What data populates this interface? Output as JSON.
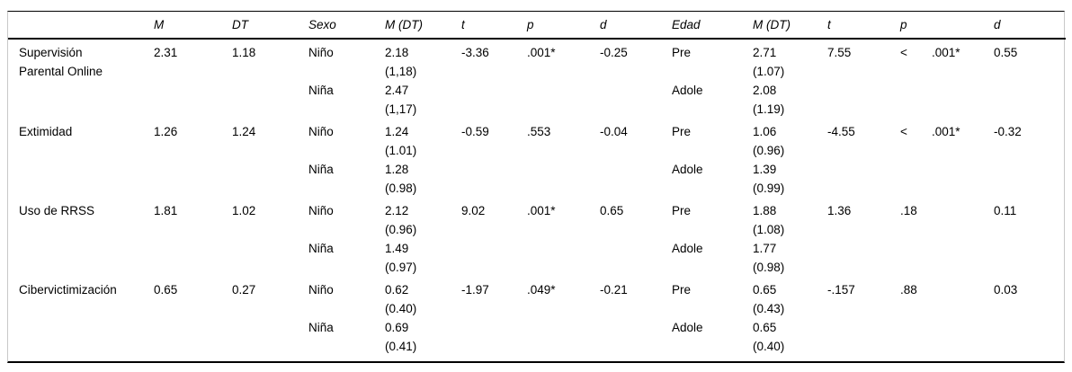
{
  "table": {
    "columns": [
      "",
      "M",
      "DT",
      "Sexo",
      "M (DT)",
      "t",
      "p",
      "d",
      "Edad",
      "M (DT)",
      "t",
      "p",
      "d"
    ],
    "rows": [
      {
        "variable_lines": [
          "Supervisión",
          "Parental Online"
        ],
        "m": "2.31",
        "dt": "1.18",
        "sexo": [
          {
            "label": "Niño",
            "m": "2.18",
            "sd": "(1,18)"
          },
          {
            "label": "Niña",
            "m": "2.47",
            "sd": "(1,17)"
          }
        ],
        "sexo_t": "-3.36",
        "sexo_p": ".001*",
        "sexo_d": "-0.25",
        "edad": [
          {
            "label": "Pre",
            "m": "2.71",
            "sd": "(1.07)"
          },
          {
            "label": "Adole",
            "m": "2.08",
            "sd": "(1.19)"
          }
        ],
        "edad_t": "7.55",
        "edad_p_prefix": "<",
        "edad_p": ".001*",
        "edad_d": "0.55"
      },
      {
        "variable_lines": [
          "Extimidad"
        ],
        "m": "1.26",
        "dt": "1.24",
        "sexo": [
          {
            "label": "Niño",
            "m": "1.24",
            "sd": "(1.01)"
          },
          {
            "label": "Niña",
            "m": "1.28",
            "sd": "(0.98)"
          }
        ],
        "sexo_t": "-0.59",
        "sexo_p": ".553",
        "sexo_d": "-0.04",
        "edad": [
          {
            "label": "Pre",
            "m": "1.06",
            "sd": "(0.96)"
          },
          {
            "label": "Adole",
            "m": "1.39",
            "sd": "(0.99)"
          }
        ],
        "edad_t": "-4.55",
        "edad_p_prefix": "<",
        "edad_p": ".001*",
        "edad_d": "-0.32"
      },
      {
        "variable_lines": [
          "Uso de RRSS"
        ],
        "m": "1.81",
        "dt": "1.02",
        "sexo": [
          {
            "label": "Niño",
            "m": "2.12",
            "sd": "(0.96)"
          },
          {
            "label": "Niña",
            "m": "1.49",
            "sd": "(0.97)"
          }
        ],
        "sexo_t": "9.02",
        "sexo_p": ".001*",
        "sexo_d": "0.65",
        "edad": [
          {
            "label": "Pre",
            "m": "1.88",
            "sd": "(1.08)"
          },
          {
            "label": "Adole",
            "m": "1.77",
            "sd": "(0.98)"
          }
        ],
        "edad_t": "1.36",
        "edad_p_prefix": "",
        "edad_p": ".18",
        "edad_d": "0.11"
      },
      {
        "variable_lines": [
          "Cibervictimización"
        ],
        "m": "0.65",
        "dt": "0.27",
        "sexo": [
          {
            "label": "Niño",
            "m": "0.62",
            "sd": "(0.40)"
          },
          {
            "label": "Niña",
            "m": "0.69",
            "sd": "(0.41)"
          }
        ],
        "sexo_t": "-1.97",
        "sexo_p": ".049*",
        "sexo_d": "-0.21",
        "edad": [
          {
            "label": "Pre",
            "m": "0.65",
            "sd": "(0.43)"
          },
          {
            "label": "Adole",
            "m": "0.65",
            "sd": "(0.40)"
          }
        ],
        "edad_t": "-.157",
        "edad_p_prefix": "",
        "edad_p": ".88",
        "edad_d": "0.03"
      }
    ]
  },
  "colors": {
    "text": "#000000",
    "rule": "#000000",
    "edge": "#c8c8c8",
    "background": "#ffffff"
  }
}
